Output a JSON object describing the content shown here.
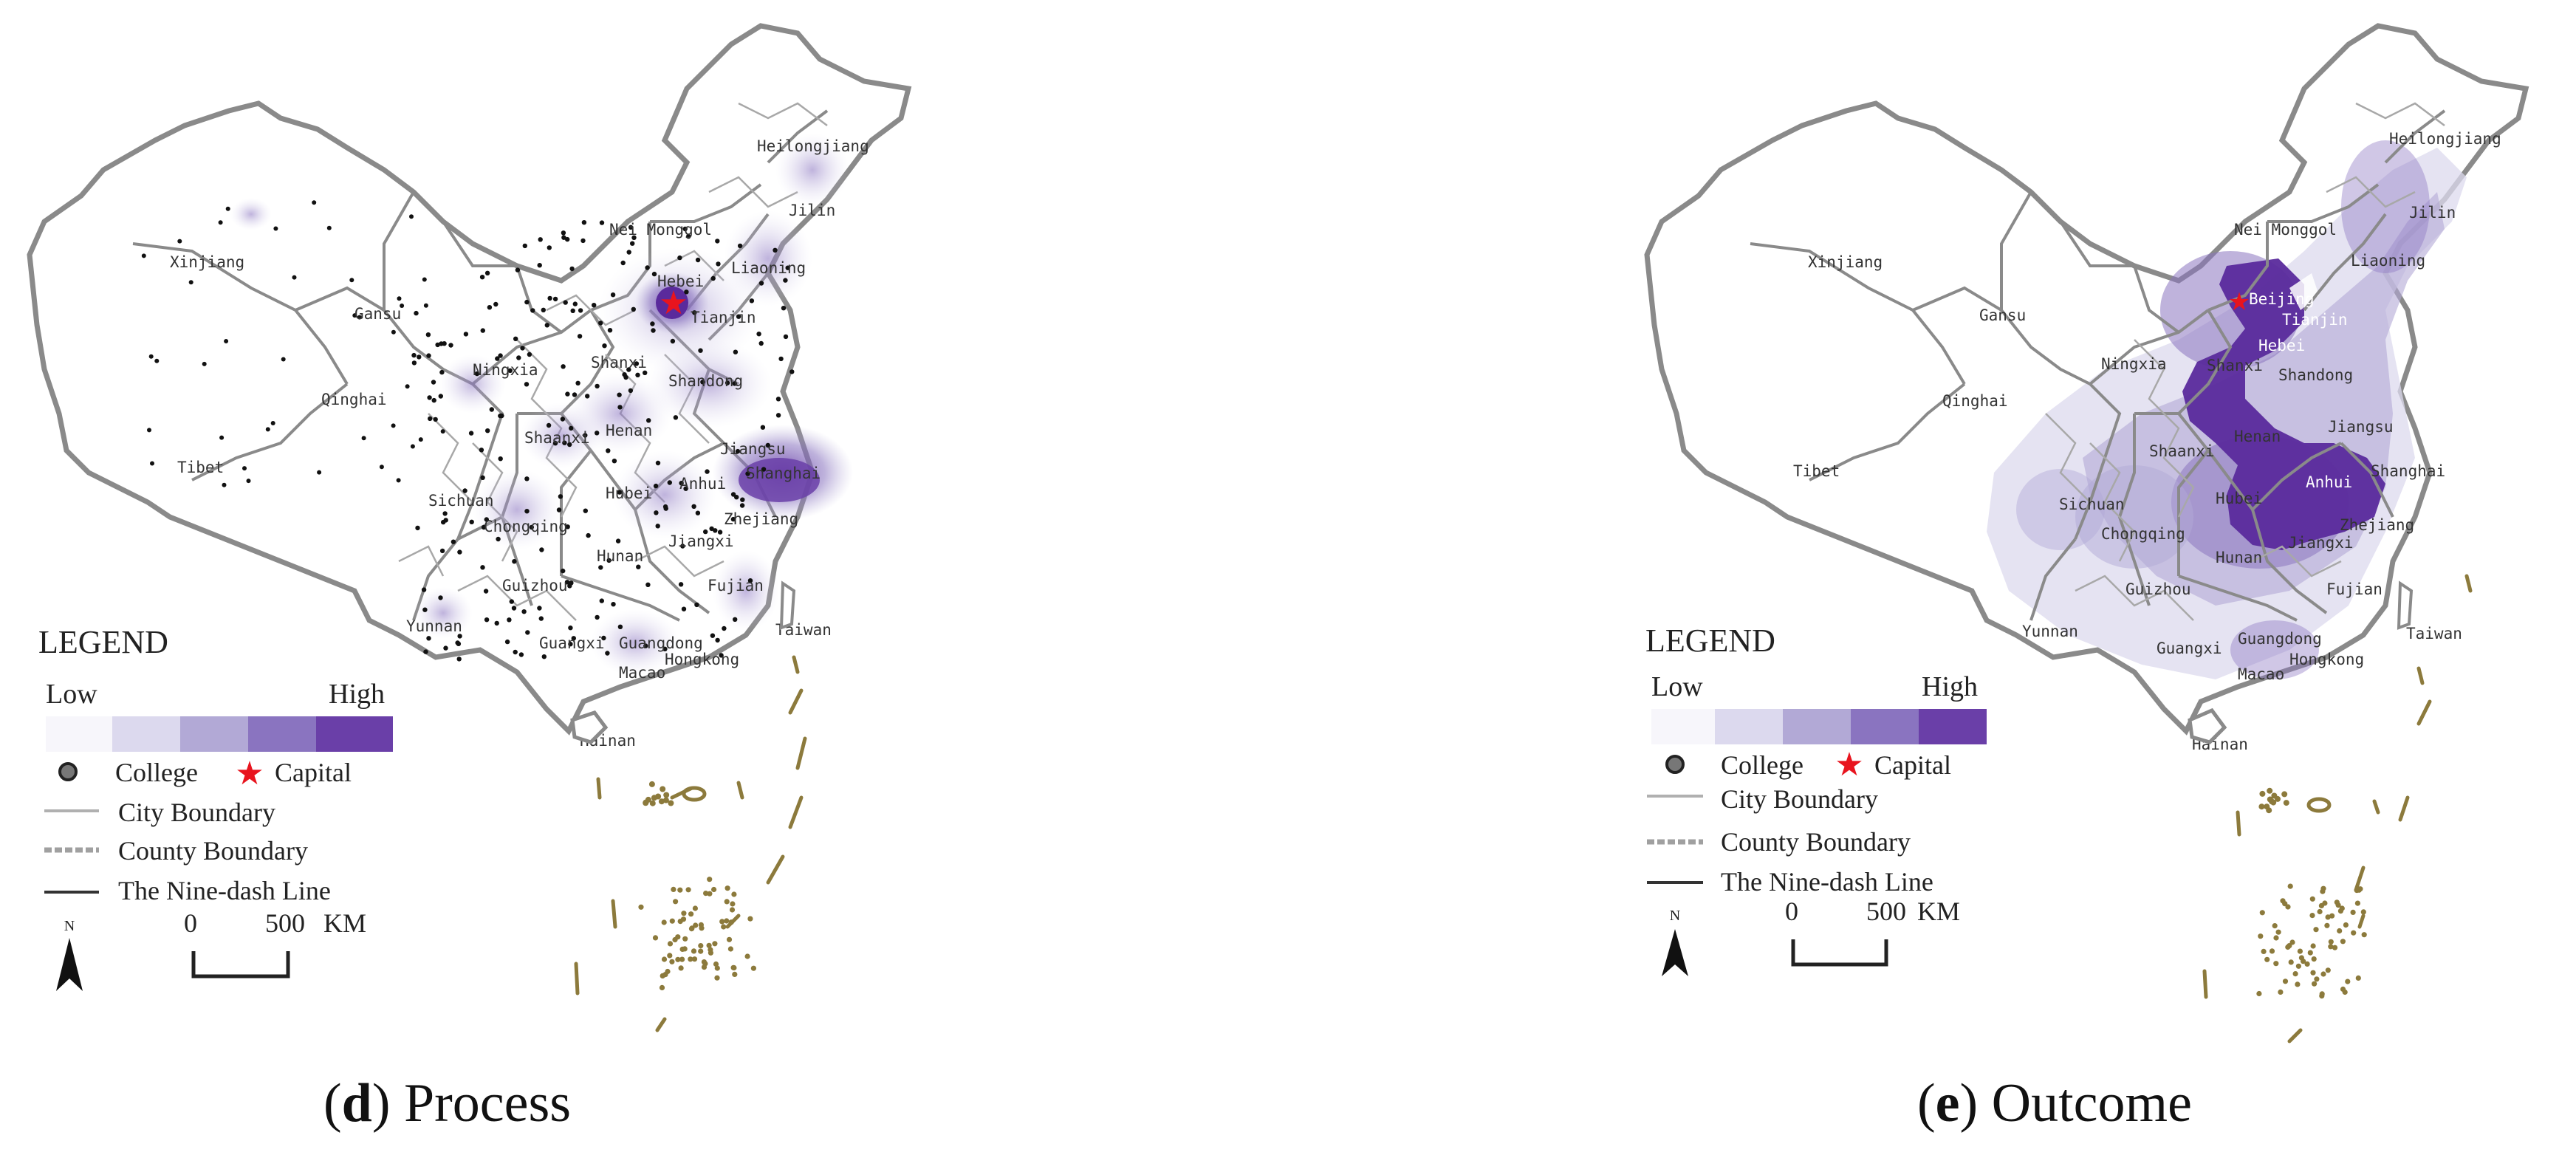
{
  "maps": [
    {
      "id": "d",
      "caption_letter": "d",
      "caption_text": ") Process",
      "caption_open": "(",
      "provinces": {
        "xinjiang": "Xinjiang",
        "gansu": "Gansu",
        "qinghai": "Qinghai",
        "tibet": "Tibet",
        "nei_monggol": "Nei Monggol",
        "heilongjiang": "Heilongjiang",
        "jilin": "Jilin",
        "liaoning": "Liaoning",
        "hebei": "Hebei",
        "tianjin": "Tianjin",
        "ningxia": "Ningxia",
        "shanxi": "Shanxi",
        "shandong": "Shandong",
        "shaanxi": "Shaanxi",
        "henan": "Henan",
        "jiangsu": "Jiangsu",
        "shanghai": "Shanghai",
        "anhui": "Anhui",
        "hubei": "Hubei",
        "sichuan": "Sichuan",
        "chongqing": "Chongqing",
        "zhejiang": "Zhejiang",
        "jiangxi": "Jiangxi",
        "hunan": "Hunan",
        "guizhou": "Guizhou",
        "fujian": "Fujian",
        "yunnan": "Yunnan",
        "guangdong": "Guangdong",
        "guangxi": "Guangxi",
        "taiwan": "Taiwan",
        "hongkong": "Hongkong",
        "macao": "Macao",
        "hainan": "Hainan"
      }
    },
    {
      "id": "e",
      "caption_letter": "e",
      "caption_text": ") Outcome",
      "caption_open": "(",
      "provinces": {
        "xinjiang": "Xinjiang",
        "gansu": "Gansu",
        "qinghai": "Qinghai",
        "tibet": "Tibet",
        "nei_monggol": "Nei Monggol",
        "heilongjiang": "Heilongjiang",
        "jilin": "Jilin",
        "liaoning": "Liaoning",
        "beijing": "Beijing",
        "hebei": "Hebei",
        "tianjin": "Tianjin",
        "ningxia": "Ningxia",
        "shanxi": "Shanxi",
        "shandong": "Shandong",
        "shaanxi": "Shaanxi",
        "henan": "Henan",
        "jiangsu": "Jiangsu",
        "shanghai": "Shanghai",
        "anhui": "Anhui",
        "hubei": "Hubei",
        "sichuan": "Sichuan",
        "chongqing": "Chongqing",
        "zhejiang": "Zhejiang",
        "jiangxi": "Jiangxi",
        "hunan": "Hunan",
        "guizhou": "Guizhou",
        "fujian": "Fujian",
        "yunnan": "Yunnan",
        "guangdong": "Guangdong",
        "guangxi": "Guangxi",
        "taiwan": "Taiwan",
        "hongkong": "Hongkong",
        "macao": "Macao",
        "hainan": "Hainan"
      }
    }
  ],
  "legend": {
    "title": "LEGEND",
    "low": "Low",
    "high": "High",
    "classes": [
      "#ffffff",
      "#dcd9ee",
      "#b2a9d6",
      "#8a74c0",
      "#6a3fa8"
    ],
    "college": "College",
    "capital": "Capital",
    "city_boundary": "City Boundary",
    "county_boundary": "County Boundary",
    "nine_dash": "The Nine-dash Line",
    "north": "N",
    "scale_zero": "0",
    "scale_max": "500",
    "scale_unit": "KM"
  },
  "colors": {
    "boundary": "#8a8a8a",
    "capital": "#e8141e",
    "nine_dash": "#8c7a3c",
    "dot": "#111111"
  }
}
